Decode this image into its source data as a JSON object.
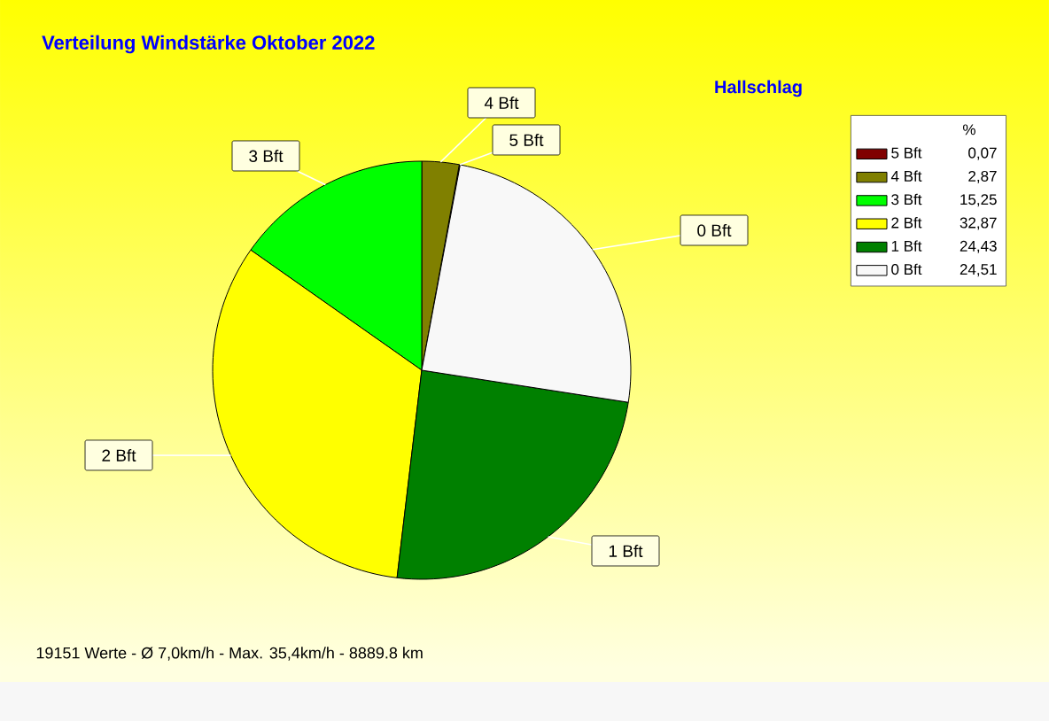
{
  "chart_data": {
    "type": "pie",
    "title": "Verteilung Windstärke  Oktober 2022",
    "subtitle": "Hallschlag",
    "categories": [
      "5 Bft",
      "4 Bft",
      "3 Bft",
      "2 Bft",
      "1 Bft",
      "0 Bft"
    ],
    "values": [
      0.07,
      2.87,
      15.25,
      32.87,
      24.43,
      24.51
    ],
    "value_labels": [
      "0,07",
      "2,87",
      "15,25",
      "32,87",
      "24,43",
      "24,51"
    ],
    "colors": [
      "#800000",
      "#808000",
      "#00ff00",
      "#ffff00",
      "#008000",
      "#f8f8f8"
    ],
    "legend": "top right",
    "legend_title": "%",
    "annotations": [
      "19151 Werte   -   Ø 7,0km/h  -  Max. 35,4km/h   -   8889.8 km"
    ]
  }
}
